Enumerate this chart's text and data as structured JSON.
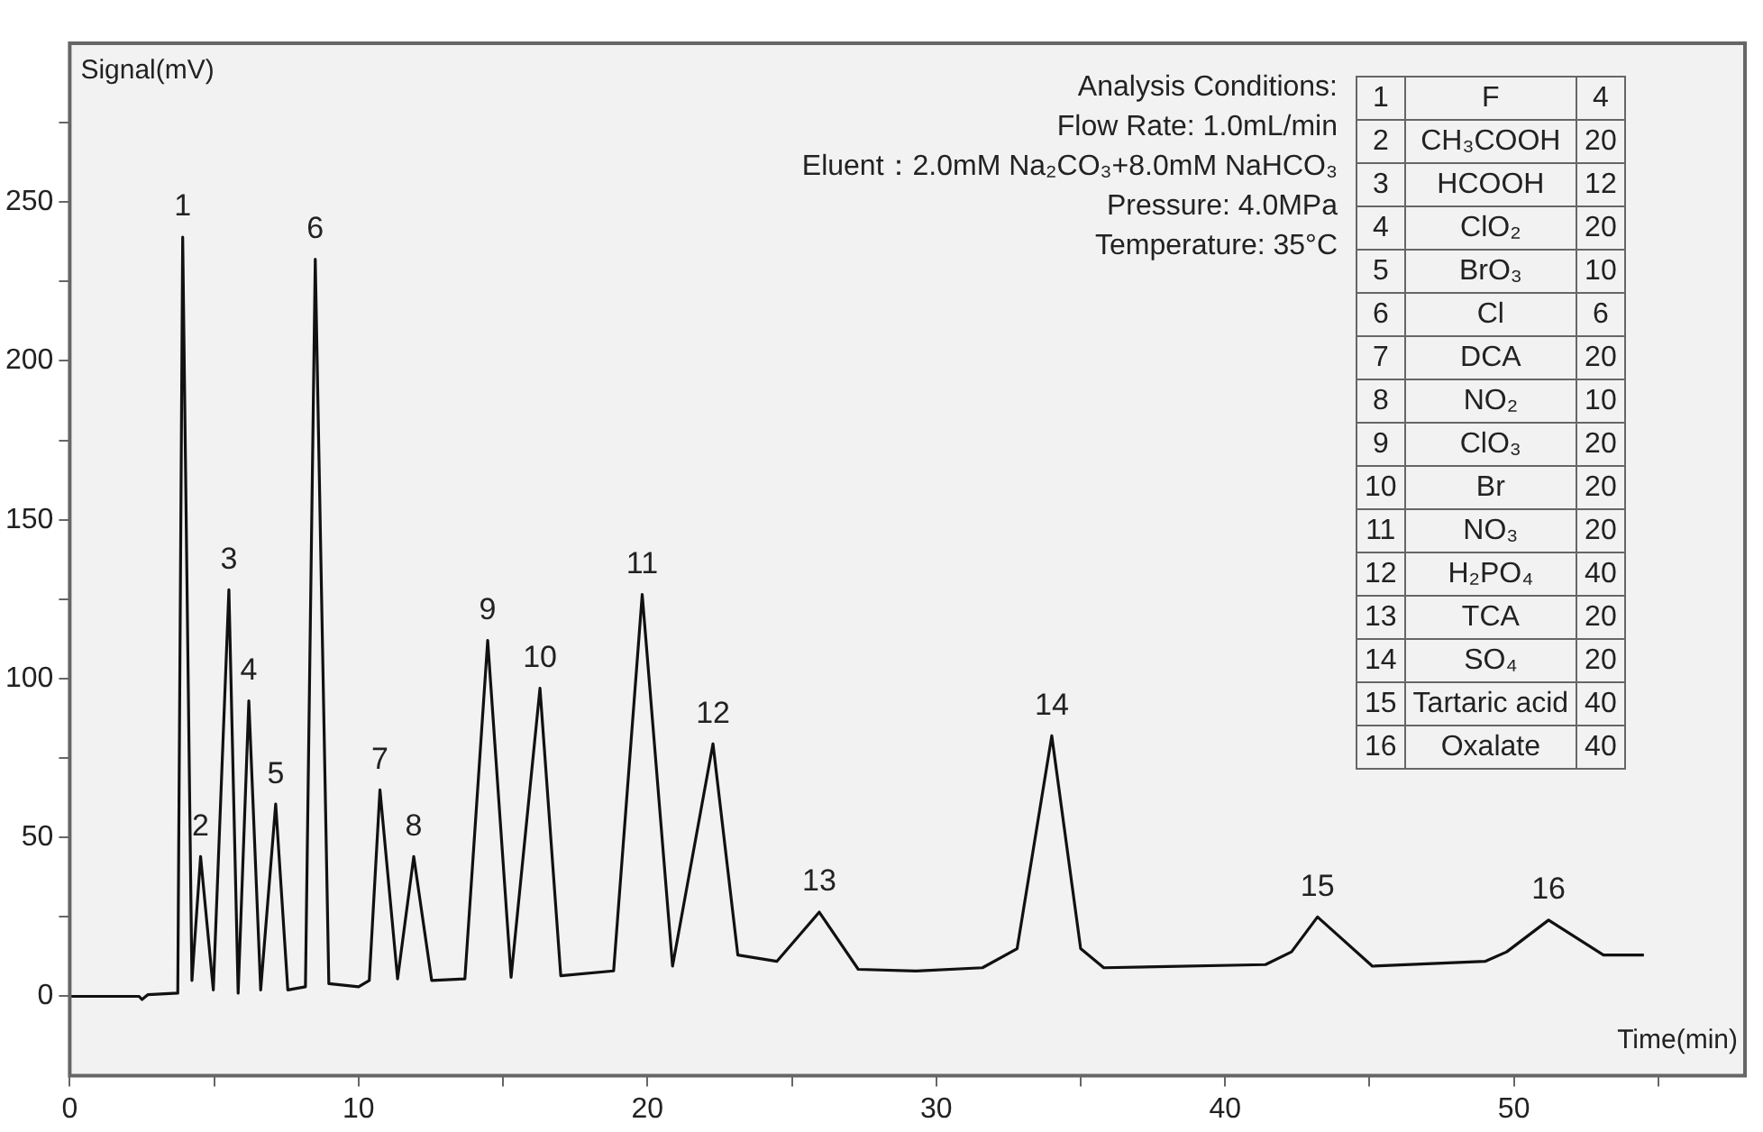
{
  "chart_data": {
    "type": "line",
    "xlabel": "Time(min)",
    "ylabel": "Signal(mV)",
    "x": [
      0,
      2.4,
      2.5,
      2.7,
      3.74,
      3.91,
      4.23,
      4.53,
      4.97,
      5.51,
      5.83,
      6.2,
      6.61,
      7.13,
      7.55,
      8.16,
      8.5,
      8.97,
      10,
      10.37,
      10.74,
      11.35,
      11.91,
      12.53,
      13.68,
      14.47,
      15.28,
      16.28,
      17.0,
      18.83,
      19.82,
      20.87,
      22.27,
      23.13,
      24.48,
      25.95,
      27.3,
      29.3,
      31.6,
      32.8,
      34.0,
      35.0,
      35.8,
      41.4,
      42.3,
      43.2,
      45.1,
      49.0,
      49.75,
      51.2,
      53.1,
      54.5
    ],
    "values": [
      0,
      0,
      -1,
      0.5,
      1,
      239,
      5,
      44,
      2,
      128,
      1,
      93,
      2,
      60.5,
      2,
      3,
      232,
      4,
      3,
      5,
      65,
      5.5,
      44,
      5,
      5.5,
      112,
      6,
      97,
      6.5,
      8,
      126.5,
      9.5,
      79.5,
      13,
      11,
      26.5,
      8.5,
      8,
      9,
      15,
      82,
      15,
      9,
      10,
      14,
      25,
      9.5,
      11,
      14,
      24,
      13,
      13
    ],
    "color": "#111111",
    "line_style": "solid",
    "marker": "none",
    "grid": false,
    "legend": false,
    "xlim": [
      0,
      58
    ],
    "ylim": [
      -25,
      300
    ],
    "xticks": [
      0,
      {
        "value": 5,
        "label": null
      },
      10,
      {
        "value": 15,
        "label": null
      },
      20,
      {
        "value": 25,
        "label": null
      },
      30,
      {
        "value": 35,
        "label": null
      },
      40,
      {
        "value": 45,
        "label": null
      },
      50,
      {
        "value": 55,
        "label": null
      }
    ],
    "yticks": [
      0,
      {
        "value": 25,
        "label": null
      },
      50,
      {
        "value": 75,
        "label": null
      },
      100,
      {
        "value": 125,
        "label": null
      },
      150,
      {
        "value": 175,
        "label": null
      },
      200,
      {
        "value": 225,
        "label": null
      },
      250,
      {
        "value": 275,
        "label": null
      }
    ],
    "annotations": [
      {
        "text": "1",
        "x": 3.91,
        "y": 239
      },
      {
        "text": "2",
        "x": 4.53,
        "y": 44
      },
      {
        "text": "3",
        "x": 5.51,
        "y": 128
      },
      {
        "text": "4",
        "x": 6.2,
        "y": 93
      },
      {
        "text": "5",
        "x": 7.13,
        "y": 60.5
      },
      {
        "text": "6",
        "x": 8.5,
        "y": 232
      },
      {
        "text": "7",
        "x": 10.74,
        "y": 65
      },
      {
        "text": "8",
        "x": 11.91,
        "y": 44
      },
      {
        "text": "9",
        "x": 14.47,
        "y": 112
      },
      {
        "text": "10",
        "x": 16.28,
        "y": 97
      },
      {
        "text": "11",
        "x": 19.82,
        "y": 126.5
      },
      {
        "text": "12",
        "x": 22.27,
        "y": 79.5
      },
      {
        "text": "13",
        "x": 25.95,
        "y": 26.5
      },
      {
        "text": "14",
        "x": 34.0,
        "y": 82
      },
      {
        "text": "15",
        "x": 43.2,
        "y": 25
      },
      {
        "text": "16",
        "x": 51.2,
        "y": 24
      },
      "Analysis Conditions:",
      "Flow Rate: 1.0mL/min",
      "Eluent：2.0mM Na₂CO₃+8.0mM NaHCO₃",
      "Pressure: 4.0MPa",
      "Temperature: 35°C",
      "1\tF\t4",
      "2\tCH₃COOH\t20",
      "3\tHCOOH\t12",
      "4\tClO₂\t20",
      "5\tBrO₃\t10",
      "6\tCl\t6",
      "7\tDCA\t20",
      "8\tNO₂\t10",
      "9\tClO₃\t20",
      "10\tBr\t20",
      "11\tNO₃\t20",
      "12\tH₂PO₄\t40",
      "13\tTCA\t20",
      "14\tSO₄\t20",
      "15\tTartaric acid\t40",
      "16\tOxalate\t40"
    ]
  }
}
